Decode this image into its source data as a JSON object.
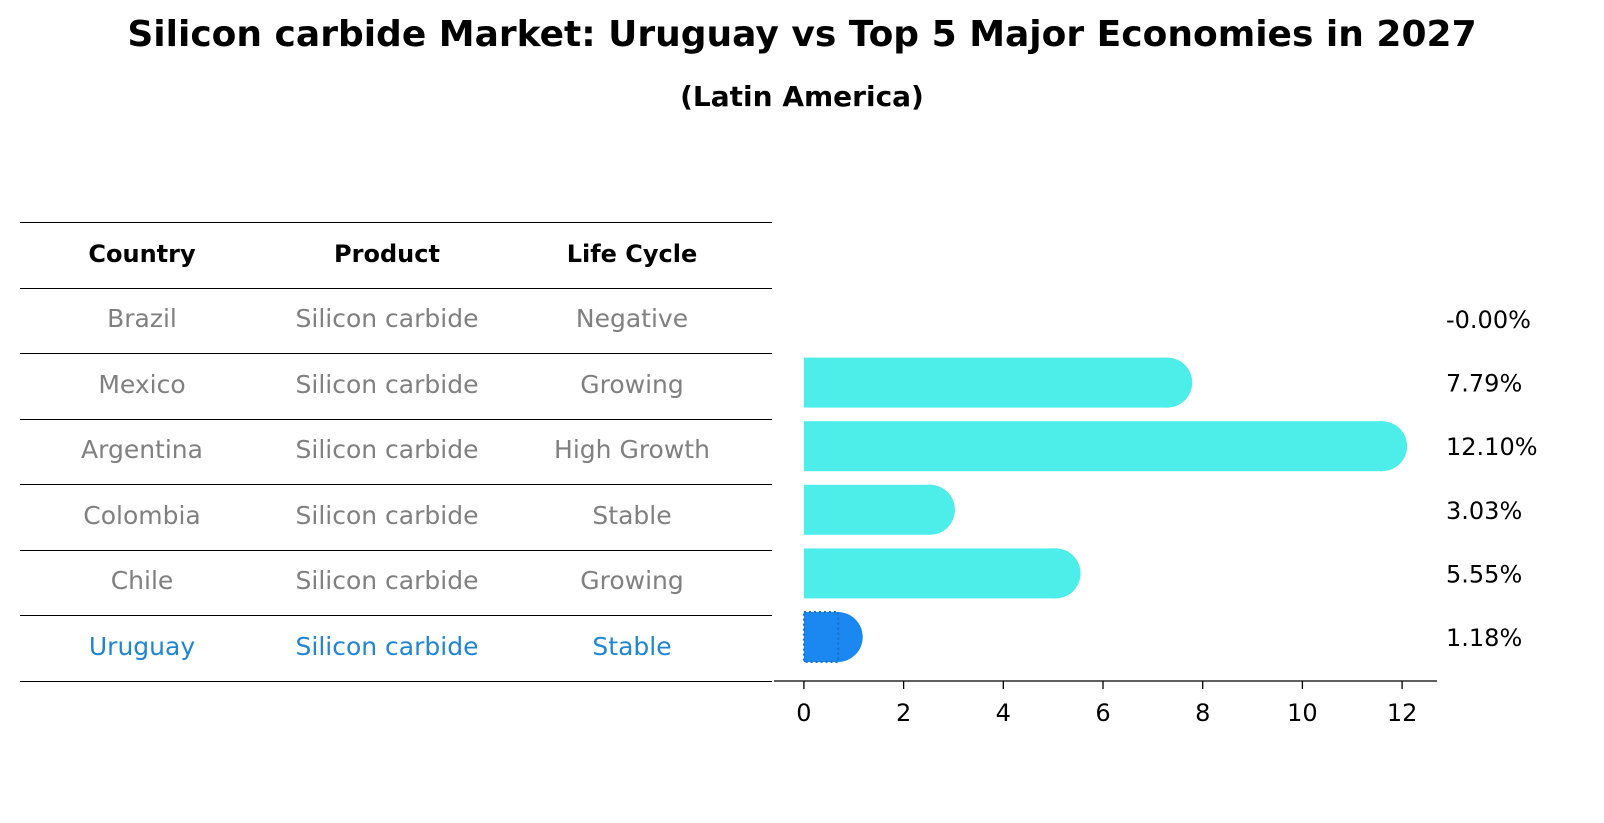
{
  "title": "Silicon carbide Market: Uruguay vs Top 5 Major Economies in 2027",
  "subtitle": "(Latin America)",
  "table": {
    "headers": [
      "Country",
      "Product",
      "Life Cycle"
    ],
    "rows": [
      [
        "Brazil",
        "Silicon carbide",
        "Negative"
      ],
      [
        "Mexico",
        "Silicon carbide",
        "Growing"
      ],
      [
        "Argentina",
        "Silicon carbide",
        "High Growth"
      ],
      [
        "Colombia",
        "Silicon carbide",
        "Stable"
      ],
      [
        "Chile",
        "Silicon carbide",
        "Growing"
      ],
      [
        "Uruguay",
        "Silicon carbide",
        "Stable"
      ]
    ],
    "highlight_row": "Uruguay"
  },
  "colors": {
    "bar": "#4deeea",
    "highlight": "#1b87f0",
    "row_text": "#808080",
    "highlight_text": "#1f85d4"
  },
  "chart_data": {
    "type": "bar",
    "orientation": "horizontal",
    "categories": [
      "Brazil",
      "Mexico",
      "Argentina",
      "Colombia",
      "Chile",
      "Uruguay"
    ],
    "values": [
      -0.0,
      7.79,
      12.1,
      3.03,
      5.55,
      1.18
    ],
    "value_labels": [
      "-0.00%",
      "7.79%",
      "12.10%",
      "3.03%",
      "5.55%",
      "1.18%"
    ],
    "xlim": [
      -0.6,
      12.7
    ],
    "xticks": [
      0,
      2,
      4,
      6,
      8,
      10,
      12
    ],
    "highlight": "Uruguay"
  }
}
